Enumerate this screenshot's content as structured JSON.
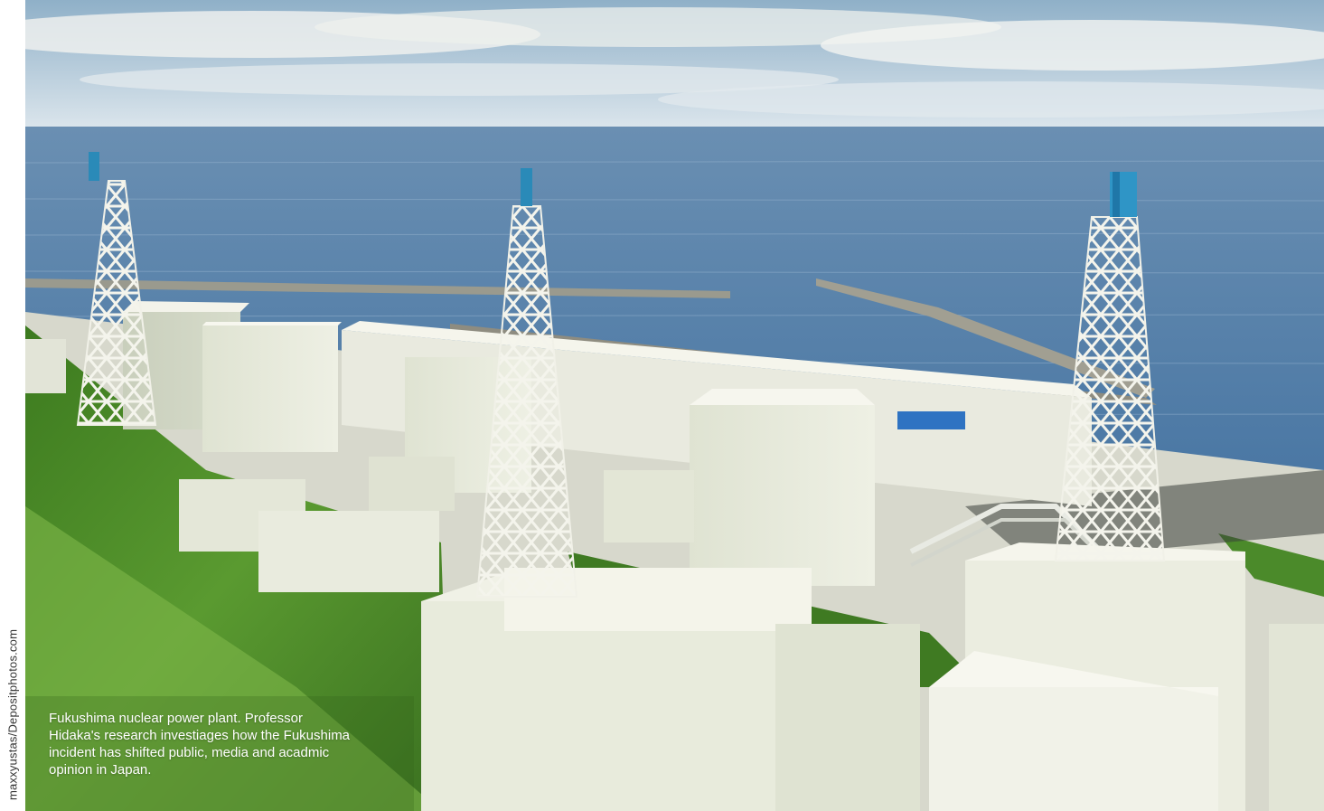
{
  "credit": "maxxyustas/Depositphotos.com",
  "caption": "Fukushima nuclear power plant. Professor Hidaka's research investiages how the Fukushima incident has shifted public, media and acadmic opinion in Japan.",
  "colors": {
    "sky_top": "#8fb2cc",
    "sea": "#4f7ca8",
    "grass": "#4f8a2a",
    "building": "#eceee0",
    "stack_cap": "#2a8ab8"
  }
}
